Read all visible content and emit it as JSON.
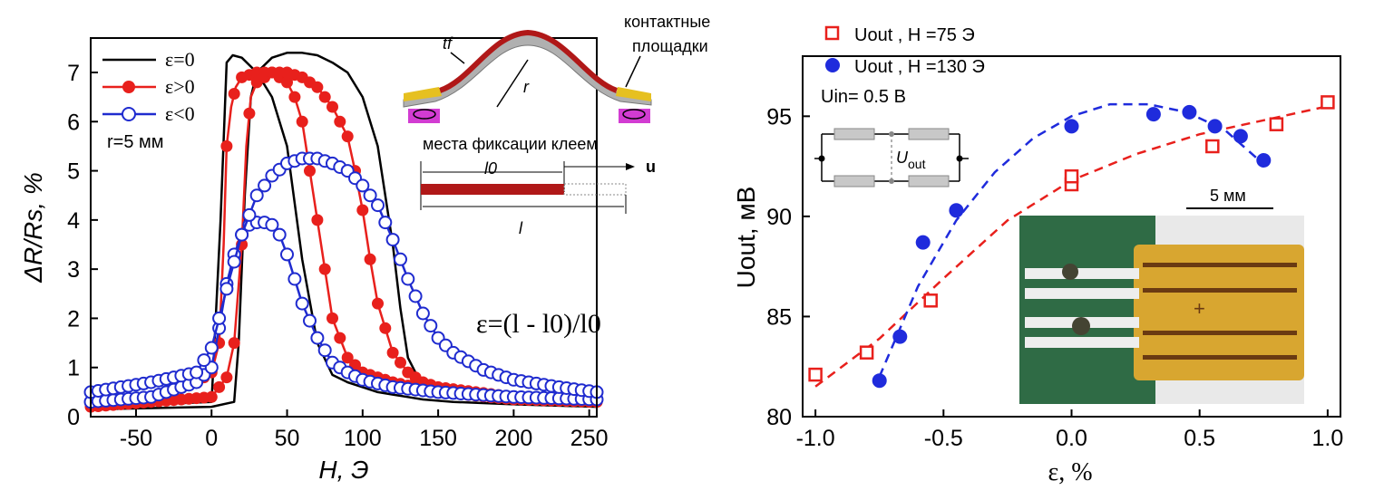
{
  "chart_data": [
    {
      "type": "line",
      "xlabel": "H, Э",
      "ylabel": "ΔR/Rs, %",
      "xlim": [
        -80,
        255
      ],
      "ylim": [
        0,
        7.7
      ],
      "xticks": [
        -50,
        0,
        50,
        100,
        150,
        200,
        250
      ],
      "yticks": [
        0,
        1,
        2,
        3,
        4,
        5,
        6,
        7
      ],
      "legend": {
        "position": "top-left",
        "note": "r=5 мм"
      },
      "formula": "ε=(l - l0)/l0",
      "inset_labels": {
        "tf": "tf",
        "r": "r",
        "contacts": "контактные площадки",
        "glue": "места фиксации клеем",
        "l0": "l0",
        "l": "l",
        "u": "u"
      },
      "series": [
        {
          "name": "ε=0",
          "color": "#000000",
          "marker": "none",
          "loops": [
            {
              "x": [
                -80,
                0,
                6,
                10,
                14,
                20,
                30,
                40,
                50,
                60,
                70,
                80,
                90,
                100,
                110,
                120,
                130,
                140,
                160,
                200,
                255
              ],
              "y": [
                0.2,
                0.3,
                4.0,
                7.2,
                7.35,
                7.3,
                7.0,
                6.5,
                5.5,
                3.2,
                1.5,
                0.85,
                0.7,
                0.6,
                0.5,
                0.45,
                0.4,
                0.35,
                0.3,
                0.25,
                0.2
              ]
            },
            {
              "x": [
                -80,
                0,
                15,
                18,
                22,
                26,
                30,
                40,
                50,
                60,
                70,
                80,
                90,
                100,
                110,
                120,
                125,
                130,
                140,
                150,
                200,
                255
              ],
              "y": [
                0.15,
                0.2,
                0.3,
                1.5,
                4.5,
                6.5,
                7.0,
                7.3,
                7.4,
                7.4,
                7.35,
                7.2,
                7.0,
                6.5,
                5.5,
                3.5,
                2.2,
                1.2,
                0.6,
                0.45,
                0.3,
                0.25
              ]
            }
          ]
        },
        {
          "name": "ε>0",
          "color": "#e8201c",
          "marker": "filled-circle",
          "loops": [
            {
              "x": [
                -80,
                -40,
                -10,
                0,
                5,
                8,
                10,
                13,
                16,
                20,
                30,
                40,
                50,
                55,
                60,
                70,
                80,
                90,
                100,
                120,
                150,
                200,
                255
              ],
              "y": [
                0.25,
                0.35,
                0.7,
                0.9,
                1.5,
                3.5,
                5.5,
                6.3,
                6.7,
                6.9,
                7.0,
                7.0,
                6.8,
                6.5,
                6.0,
                4.0,
                2.0,
                1.2,
                0.9,
                0.7,
                0.5,
                0.35,
                0.3
              ]
            },
            {
              "x": [
                -80,
                0,
                10,
                15,
                20,
                23,
                26,
                30,
                40,
                50,
                60,
                70,
                80,
                90,
                95,
                100,
                105,
                110,
                120,
                130,
                140,
                150,
                200,
                255
              ],
              "y": [
                0.2,
                0.4,
                0.8,
                1.5,
                3.5,
                5.5,
                6.5,
                6.8,
                7.0,
                7.0,
                6.9,
                6.7,
                6.3,
                5.7,
                5.0,
                4.2,
                3.2,
                2.3,
                1.3,
                0.9,
                0.7,
                0.6,
                0.4,
                0.3
              ]
            }
          ]
        },
        {
          "name": "ε<0",
          "color": "#1f2bcf",
          "marker": "open-circle",
          "loops": [
            {
              "x": [
                -80,
                -40,
                -10,
                0,
                5,
                10,
                15,
                20,
                25,
                30,
                35,
                40,
                45,
                50,
                55,
                60,
                70,
                80,
                90,
                100,
                120,
                150,
                200,
                255
              ],
              "y": [
                0.3,
                0.4,
                0.7,
                1.0,
                1.8,
                2.7,
                3.3,
                3.7,
                3.9,
                3.95,
                3.95,
                3.9,
                3.7,
                3.3,
                2.8,
                2.3,
                1.6,
                1.1,
                0.9,
                0.75,
                0.6,
                0.5,
                0.4,
                0.35
              ]
            },
            {
              "x": [
                -80,
                -40,
                -10,
                0,
                10,
                20,
                30,
                40,
                50,
                60,
                70,
                80,
                90,
                100,
                110,
                120,
                130,
                140,
                150,
                160,
                180,
                200,
                230,
                255
              ],
              "y": [
                0.5,
                0.7,
                0.9,
                1.4,
                2.6,
                3.7,
                4.5,
                4.9,
                5.15,
                5.25,
                5.25,
                5.15,
                5.0,
                4.7,
                4.3,
                3.6,
                2.8,
                2.1,
                1.6,
                1.3,
                0.95,
                0.75,
                0.6,
                0.5
              ]
            }
          ]
        }
      ]
    },
    {
      "type": "scatter",
      "xlabel": "ε, %",
      "ylabel": "Uout, мВ",
      "xlim": [
        -1.05,
        1.05
      ],
      "ylim": [
        80,
        98
      ],
      "xticks": [
        -1.0,
        -0.5,
        0.0,
        0.5,
        1.0
      ],
      "yticks": [
        80,
        85,
        90,
        95
      ],
      "legend": {
        "position": "top-left"
      },
      "annotation": "Uin= 0.5 В",
      "scale_bar": "5 мм",
      "circuit_label": "Uout",
      "series": [
        {
          "name": "Uout , H =75 Э",
          "color": "#e8201c",
          "marker": "open-square",
          "x": [
            -1.0,
            -0.8,
            -0.55,
            0.0,
            0.0,
            0.55,
            0.8,
            1.0
          ],
          "y": [
            82.1,
            83.2,
            85.8,
            91.6,
            92.0,
            93.5,
            94.6,
            95.7
          ],
          "fit": {
            "x": [
              -1.0,
              -0.75,
              -0.5,
              -0.25,
              0.0,
              0.25,
              0.5,
              0.75,
              1.0
            ],
            "y": [
              81.5,
              83.9,
              86.9,
              89.8,
              91.8,
              93.1,
              94.1,
              94.8,
              95.5
            ]
          }
        },
        {
          "name": "Uout , H =130 Э",
          "color": "#1f2bdc",
          "marker": "filled-circle",
          "x": [
            -0.75,
            -0.67,
            -0.58,
            -0.45,
            0.0,
            0.32,
            0.46,
            0.56,
            0.66,
            0.75
          ],
          "y": [
            81.8,
            84.0,
            88.7,
            90.3,
            94.5,
            95.1,
            95.2,
            94.5,
            94.0,
            92.8
          ],
          "fit": {
            "x": [
              -0.75,
              -0.6,
              -0.45,
              -0.3,
              -0.15,
              0.0,
              0.15,
              0.3,
              0.45,
              0.6,
              0.75
            ],
            "y": [
              82.0,
              86.5,
              89.8,
              92.2,
              93.9,
              95.0,
              95.6,
              95.6,
              95.2,
              94.3,
              92.6
            ]
          }
        }
      ]
    }
  ]
}
